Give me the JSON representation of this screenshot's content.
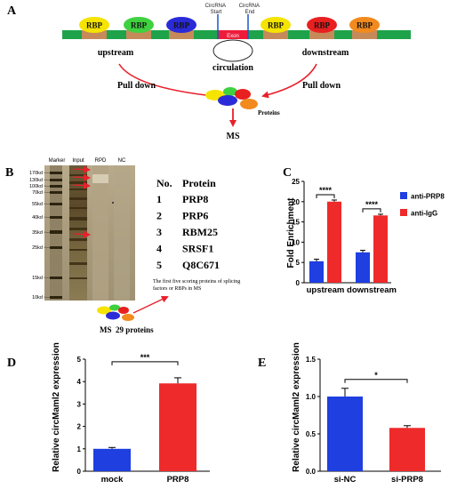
{
  "panels": {
    "A": {
      "letter": "A",
      "rbp_label": "RBP",
      "rbp_colors": [
        "#f5e300",
        "#3fd13f",
        "#2a2ad8",
        "#f5e300",
        "#e82020",
        "#f28a1e"
      ],
      "circrna_start": [
        "CircRNA",
        "Start"
      ],
      "circrna_end": [
        "CircRNA",
        "End"
      ],
      "exon_label": "Exon",
      "upstream_label": "upstream",
      "downstream_label": "downstream",
      "circulation_label": "circulation",
      "pull_down_left": "Pull down",
      "pull_down_right": "Pull down",
      "proteins_label": "Proteins",
      "ms_label": "MS"
    },
    "B": {
      "letter": "B",
      "gel_lanes": [
        "Marker",
        "Input",
        "RPD",
        "NC"
      ],
      "markers": [
        "170kd",
        "130kd",
        "100kd",
        "70kd",
        "55kd",
        "40kd",
        "35kd",
        "25kd",
        "15kd",
        "10kd"
      ],
      "table_header": [
        "No.",
        "Protein"
      ],
      "proteins": [
        {
          "no": "1",
          "name": "PRP8"
        },
        {
          "no": "2",
          "name": "PRP6"
        },
        {
          "no": "3",
          "name": "RBM25"
        },
        {
          "no": "4",
          "name": "SRSF1"
        },
        {
          "no": "5",
          "name": "Q8C671"
        }
      ],
      "caption": [
        "The first five scoring proteins of splicing",
        "factors or RBPs in MS"
      ],
      "ms_summary": "MS",
      "ms_count": "29 proteins"
    }
  },
  "chart_data": [
    {
      "panel": "C",
      "letter": "C",
      "type": "bar",
      "ylabel": "Fold Enrichment",
      "ylim": [
        0,
        25
      ],
      "yticks": [
        "0",
        "5",
        "10",
        "15",
        "20",
        "25"
      ],
      "categories": [
        "upstream",
        "downstream"
      ],
      "series": [
        {
          "name": "anti-PRP8",
          "color": "#1f3fe0",
          "values": [
            5.3,
            7.5
          ],
          "errors": [
            0.5,
            0.5
          ]
        },
        {
          "name": "anti-IgG",
          "color": "#ee2a2a",
          "values": [
            20.0,
            16.6
          ],
          "errors": [
            0.4,
            0.3
          ]
        }
      ],
      "significance": [
        "****",
        "****"
      ],
      "legend_placement": "right"
    },
    {
      "panel": "D",
      "letter": "D",
      "type": "bar",
      "ylabel": "Relative  circMaml2 expression",
      "ylim": [
        0,
        5
      ],
      "yticks": [
        "0",
        "1",
        "2",
        "3",
        "4",
        "5"
      ],
      "categories": [
        "mock",
        "PRP8"
      ],
      "values": [
        1.0,
        3.92
      ],
      "errors": [
        0.06,
        0.25
      ],
      "colors": [
        "#1f3fe0",
        "#ee2a2a"
      ],
      "significance": "***"
    },
    {
      "panel": "E",
      "letter": "E",
      "type": "bar",
      "ylabel": "Relative  circMaml2 expression",
      "ylim": [
        0,
        1.5
      ],
      "yticks": [
        "0.0",
        "0.5",
        "1.0",
        "1.5"
      ],
      "categories": [
        "si-NC",
        "si-PRP8"
      ],
      "values": [
        1.0,
        0.58
      ],
      "errors": [
        0.11,
        0.03
      ],
      "colors": [
        "#1f3fe0",
        "#ee2a2a"
      ],
      "significance": "*"
    }
  ]
}
